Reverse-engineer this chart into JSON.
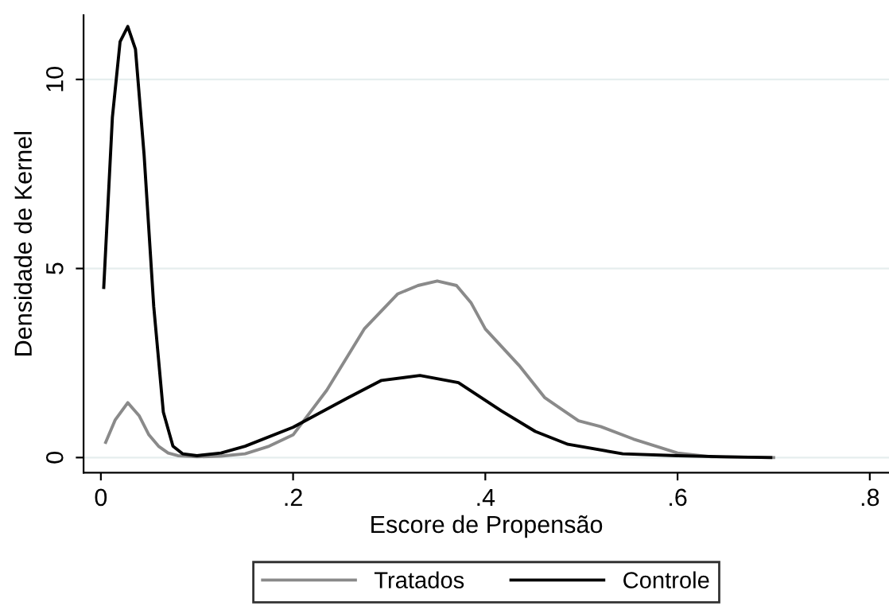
{
  "chart_data": {
    "type": "line",
    "xlabel": "Escore de Propensão",
    "ylabel": "Densidade de Kernel",
    "xlim": [
      -0.018,
      0.82
    ],
    "xticks": [
      {
        "value": 0,
        "label": "0"
      },
      {
        "value": 0.2,
        "label": ".2"
      },
      {
        "value": 0.4,
        "label": ".4"
      },
      {
        "value": 0.6,
        "label": ".6"
      },
      {
        "value": 0.8,
        "label": ".8"
      }
    ],
    "ylim": [
      -0.4,
      11.7
    ],
    "yticks": [
      0,
      5,
      10
    ],
    "grid": "y",
    "legend": "bottom",
    "marker": "none",
    "line_style": "solid",
    "series": [
      {
        "name": "Tratados",
        "color": "#8a8a8a",
        "x": [
          0.005,
          0.015,
          0.028,
          0.04,
          0.05,
          0.06,
          0.07,
          0.08,
          0.1,
          0.125,
          0.15,
          0.175,
          0.2,
          0.235,
          0.274,
          0.309,
          0.33,
          0.35,
          0.37,
          0.385,
          0.4,
          0.435,
          0.462,
          0.497,
          0.52,
          0.554,
          0.6,
          0.635,
          0.67,
          0.7
        ],
        "values": [
          0.4,
          1.0,
          1.45,
          1.1,
          0.6,
          0.3,
          0.12,
          0.05,
          0.02,
          0.04,
          0.1,
          0.3,
          0.6,
          1.78,
          3.4,
          4.33,
          4.55,
          4.67,
          4.55,
          4.1,
          3.4,
          2.44,
          1.58,
          0.97,
          0.82,
          0.49,
          0.12,
          0.02,
          0.01,
          0.0
        ]
      },
      {
        "name": "Controle",
        "color": "#000000",
        "x": [
          0.003,
          0.012,
          0.02,
          0.028,
          0.036,
          0.045,
          0.055,
          0.065,
          0.075,
          0.085,
          0.1,
          0.125,
          0.15,
          0.2,
          0.257,
          0.292,
          0.332,
          0.372,
          0.417,
          0.452,
          0.486,
          0.543,
          0.6,
          0.65,
          0.697
        ],
        "values": [
          4.5,
          9.0,
          11.0,
          11.4,
          10.8,
          8.0,
          4.0,
          1.2,
          0.3,
          0.1,
          0.05,
          0.12,
          0.3,
          0.8,
          1.58,
          2.04,
          2.17,
          1.98,
          1.23,
          0.69,
          0.35,
          0.1,
          0.05,
          0.02,
          0.0
        ]
      }
    ]
  }
}
